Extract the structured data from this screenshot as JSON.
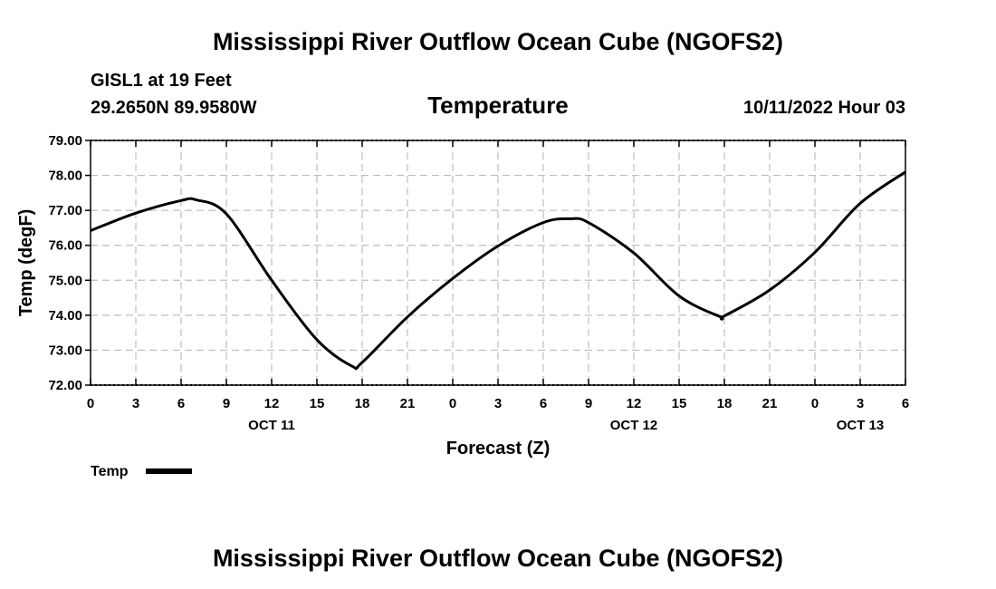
{
  "page_title": "Mississippi River Outflow Ocean Cube (NGOFS2)",
  "footer_title": "Mississippi River Outflow Ocean Cube (NGOFS2)",
  "station": {
    "name": "GISL1 at 19 Feet",
    "coords": "29.2650N  89.9580W"
  },
  "run_time": "10/11/2022 Hour 03",
  "chart_data": {
    "type": "line",
    "title": "Temperature",
    "xlabel": "Forecast (Z)",
    "ylabel": "Temp (degF)",
    "ylim": [
      72,
      79
    ],
    "yticks": [
      "72.00",
      "73.00",
      "74.00",
      "75.00",
      "76.00",
      "77.00",
      "78.00",
      "79.00"
    ],
    "xlim": [
      0,
      54
    ],
    "xticks": [
      "0",
      "3",
      "6",
      "9",
      "12",
      "15",
      "18",
      "21",
      "0",
      "3",
      "6",
      "9",
      "12",
      "15",
      "18",
      "21",
      "0",
      "3",
      "6"
    ],
    "date_labels": [
      {
        "label": "OCT 11",
        "hour": 12
      },
      {
        "label": "OCT 12",
        "hour": 36
      },
      {
        "label": "OCT 13",
        "hour": 51
      }
    ],
    "grid": true,
    "legend": "bottom-left",
    "series": [
      {
        "name": "Temp",
        "x": [
          0,
          3,
          6,
          7,
          9,
          12,
          15,
          17.3,
          18,
          21,
          24,
          27,
          30,
          31.8,
          33,
          36,
          39,
          41.7,
          42,
          45,
          48,
          51,
          54
        ],
        "values": [
          76.42,
          76.92,
          77.28,
          77.3,
          76.9,
          75.0,
          73.3,
          72.55,
          72.65,
          73.95,
          75.05,
          75.98,
          76.65,
          76.76,
          76.65,
          75.78,
          74.55,
          73.96,
          73.98,
          74.72,
          75.8,
          77.2,
          78.1
        ]
      }
    ]
  }
}
